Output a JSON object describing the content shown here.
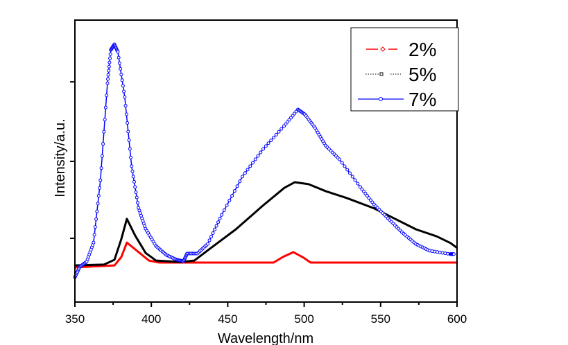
{
  "chart_data": {
    "type": "line",
    "title": "",
    "xlabel": "Wavelength/nm",
    "ylabel": "Intensity/a.u.",
    "xlim": [
      350,
      600
    ],
    "ylim": [
      0,
      100
    ],
    "xticks": [
      350,
      400,
      450,
      500,
      550,
      600
    ],
    "xtick_labels": [
      "350",
      "400",
      "450",
      "500",
      "550",
      "600"
    ],
    "xminor_ticks": [
      375,
      425,
      475,
      525,
      575
    ],
    "yticks": [
      22.6,
      49.9,
      78.1
    ],
    "ytick_labels_shown": false,
    "grid": false,
    "legend_position": "top-right",
    "series": [
      {
        "name": "2%",
        "color": "#ff0000",
        "marker": "diamond",
        "linestyle": "dashed",
        "points": [
          [
            350,
            12.3
          ],
          [
            375.9,
            13.0
          ],
          [
            380.4,
            16.0
          ],
          [
            384,
            21.1
          ],
          [
            389.4,
            18.7
          ],
          [
            398.5,
            14.7
          ],
          [
            405.3,
            14.0
          ],
          [
            430,
            14.0
          ],
          [
            480,
            14.0
          ],
          [
            486.1,
            16.0
          ],
          [
            492.9,
            17.7
          ],
          [
            499.7,
            15.7
          ],
          [
            504.2,
            14.0
          ],
          [
            530,
            14.0
          ],
          [
            560,
            14.0
          ],
          [
            600,
            14.0
          ]
        ]
      },
      {
        "name": "5%",
        "color": "#000000",
        "marker": "square",
        "linestyle": "dotted",
        "points": [
          [
            350,
            13.0
          ],
          [
            369.1,
            13.3
          ],
          [
            375.9,
            15.0
          ],
          [
            380.4,
            22.4
          ],
          [
            384,
            29.5
          ],
          [
            389.4,
            23.6
          ],
          [
            396.3,
            17.4
          ],
          [
            403.1,
            14.7
          ],
          [
            419,
            14.2
          ],
          [
            428.1,
            14.7
          ],
          [
            437.1,
            18.4
          ],
          [
            455.3,
            25.8
          ],
          [
            473.4,
            34.4
          ],
          [
            487,
            40.5
          ],
          [
            493.8,
            42.5
          ],
          [
            502.9,
            41.8
          ],
          [
            514.2,
            39.3
          ],
          [
            527.8,
            36.9
          ],
          [
            545.9,
            33.2
          ],
          [
            559.5,
            29.5
          ],
          [
            573.1,
            25.8
          ],
          [
            586.7,
            23.3
          ],
          [
            595.8,
            20.9
          ],
          [
            600,
            19.2
          ]
        ]
      },
      {
        "name": "7%",
        "color": "#0000ff",
        "marker": "circle",
        "linestyle": "solid",
        "points": [
          [
            350,
            8.8
          ],
          [
            353.2,
            12.5
          ],
          [
            357.7,
            14.3
          ],
          [
            362.2,
            21.1
          ],
          [
            366.7,
            43.2
          ],
          [
            371.3,
            77.6
          ],
          [
            373.5,
            89.4
          ],
          [
            375.8,
            91.4
          ],
          [
            378.1,
            88.7
          ],
          [
            382.6,
            72.7
          ],
          [
            387.1,
            48.2
          ],
          [
            391.6,
            33.4
          ],
          [
            396.2,
            26.0
          ],
          [
            403,
            19.9
          ],
          [
            409.8,
            16.7
          ],
          [
            416.6,
            15.0
          ],
          [
            421.1,
            14.5
          ],
          [
            423.4,
            17.2
          ],
          [
            430.1,
            17.2
          ],
          [
            436.9,
            20.6
          ],
          [
            446,
            30.9
          ],
          [
            459.6,
            44.5
          ],
          [
            473.2,
            54.3
          ],
          [
            486.8,
            62.4
          ],
          [
            495.9,
            68.3
          ],
          [
            500.4,
            66.6
          ],
          [
            507.2,
            61.7
          ],
          [
            514,
            55.5
          ],
          [
            523.1,
            50.6
          ],
          [
            536.7,
            40.8
          ],
          [
            545.7,
            34.6
          ],
          [
            554.8,
            29.7
          ],
          [
            563.9,
            24.8
          ],
          [
            573,
            20.6
          ],
          [
            582,
            18.2
          ],
          [
            595.6,
            17.0
          ],
          [
            597.9,
            17.0
          ]
        ]
      }
    ]
  }
}
